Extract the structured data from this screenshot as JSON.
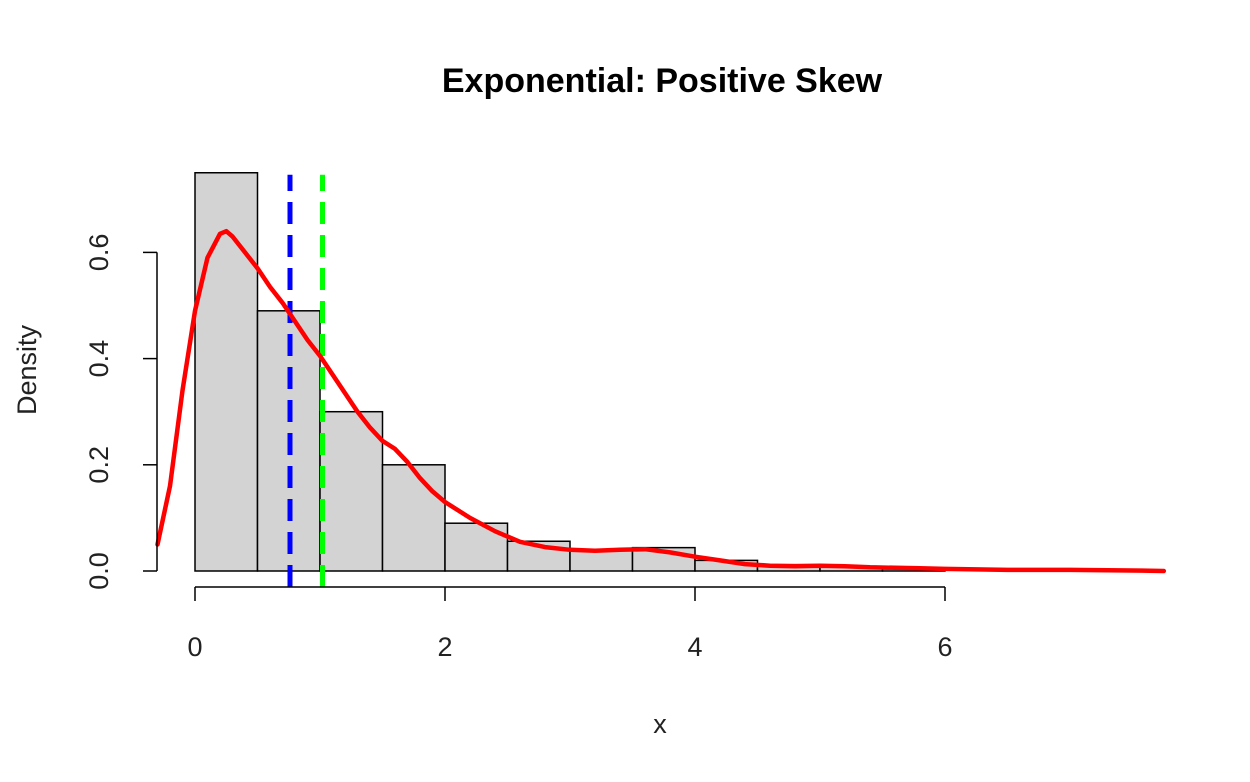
{
  "chart_data": {
    "type": "histogram",
    "title": "Exponential: Positive Skew",
    "xlabel": "x",
    "ylabel": "Density",
    "x_ticks": [
      "0",
      "2",
      "4",
      "6"
    ],
    "y_ticks": [
      "0.0",
      "0.2",
      "0.4",
      "0.6"
    ],
    "x_tick_values": [
      0,
      2,
      4,
      6
    ],
    "y_tick_values": [
      0,
      0.2,
      0.4,
      0.6
    ],
    "bins": [
      {
        "x0": 0.0,
        "x1": 0.5,
        "density": 0.75
      },
      {
        "x0": 0.5,
        "x1": 1.0,
        "density": 0.49
      },
      {
        "x0": 1.0,
        "x1": 1.5,
        "density": 0.3
      },
      {
        "x0": 1.5,
        "x1": 2.0,
        "density": 0.2
      },
      {
        "x0": 2.0,
        "x1": 2.5,
        "density": 0.09
      },
      {
        "x0": 2.5,
        "x1": 3.0,
        "density": 0.056
      },
      {
        "x0": 3.0,
        "x1": 3.5,
        "density": 0.04
      },
      {
        "x0": 3.5,
        "x1": 4.0,
        "density": 0.044
      },
      {
        "x0": 4.0,
        "x1": 4.5,
        "density": 0.02
      },
      {
        "x0": 4.5,
        "x1": 5.0,
        "density": 0.012
      },
      {
        "x0": 5.0,
        "x1": 5.5,
        "density": 0.008
      },
      {
        "x0": 5.5,
        "x1": 6.0,
        "density": 0.004
      }
    ],
    "density_curve": {
      "color": "#ff0000",
      "x": [
        -0.3,
        -0.2,
        -0.1,
        0.0,
        0.1,
        0.2,
        0.25,
        0.3,
        0.4,
        0.5,
        0.6,
        0.7,
        0.8,
        0.9,
        1.0,
        1.1,
        1.2,
        1.3,
        1.4,
        1.5,
        1.6,
        1.7,
        1.8,
        1.9,
        2.0,
        2.2,
        2.4,
        2.6,
        2.8,
        3.0,
        3.2,
        3.4,
        3.6,
        3.8,
        4.0,
        4.2,
        4.4,
        4.6,
        4.8,
        5.0,
        5.2,
        5.4,
        5.6,
        5.8,
        6.0,
        6.5,
        7.0,
        7.5,
        7.75
      ],
      "y": [
        0.05,
        0.16,
        0.34,
        0.49,
        0.59,
        0.635,
        0.64,
        0.63,
        0.6,
        0.57,
        0.535,
        0.505,
        0.47,
        0.435,
        0.405,
        0.37,
        0.335,
        0.3,
        0.27,
        0.245,
        0.23,
        0.205,
        0.175,
        0.15,
        0.13,
        0.1,
        0.075,
        0.055,
        0.045,
        0.04,
        0.038,
        0.04,
        0.041,
        0.035,
        0.027,
        0.02,
        0.013,
        0.01,
        0.009,
        0.01,
        0.009,
        0.007,
        0.006,
        0.005,
        0.004,
        0.002,
        0.002,
        0.001,
        0.0
      ]
    },
    "vlines": [
      {
        "x": 0.76,
        "color": "#0000ff",
        "style": "dashed"
      },
      {
        "x": 1.02,
        "color": "#00ff00",
        "style": "dashed"
      }
    ],
    "bar_fill": "#d3d3d3",
    "bar_stroke": "#000000",
    "xlim": [
      -0.3,
      7.75
    ],
    "ylim": [
      0,
      0.75
    ]
  }
}
